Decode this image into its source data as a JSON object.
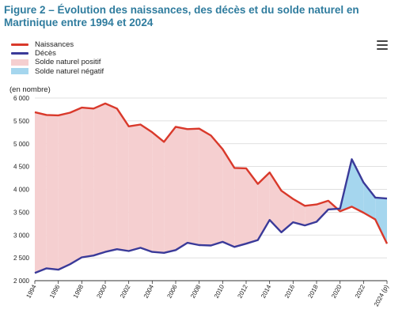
{
  "header": {
    "title": "Figure 2 – Évolution des naissances, des décès et du solde naturel en Martinique entre 1994 et 2024"
  },
  "menu": {
    "icon": "hamburger-menu-icon"
  },
  "legend": {
    "items": [
      {
        "label": "Naissances",
        "kind": "line",
        "color": "#d9392b"
      },
      {
        "label": "Décès",
        "kind": "line",
        "color": "#3a3a99"
      },
      {
        "label": "Solde naturel positif",
        "kind": "area",
        "color": "#f5cfd0"
      },
      {
        "label": "Solde naturel négatif",
        "kind": "area",
        "color": "#a5d6ee"
      }
    ]
  },
  "chart_data": {
    "type": "line",
    "title": "Figure 2 – Évolution des naissances, des décès et du solde naturel en Martinique entre 1994 et 2024",
    "ylabel": "(en nombre)",
    "xlabel": "",
    "ylim": [
      2000,
      6000
    ],
    "yticks": [
      "2 000",
      "2 500",
      "3 000",
      "3 500",
      "4 000",
      "4 500",
      "5 000",
      "5 500",
      "6 000"
    ],
    "xtick_labels": [
      "1994",
      "1996",
      "1998",
      "2000",
      "2002",
      "2004",
      "2006",
      "2008",
      "2010",
      "2012",
      "2014",
      "2016",
      "2018",
      "2020",
      "2022",
      "2024 (p)"
    ],
    "x": [
      1994,
      1995,
      1996,
      1997,
      1998,
      1999,
      2000,
      2001,
      2002,
      2003,
      2004,
      2005,
      2006,
      2007,
      2008,
      2009,
      2010,
      2011,
      2012,
      2013,
      2014,
      2015,
      2016,
      2017,
      2018,
      2019,
      2020,
      2021,
      2022,
      2023,
      2024
    ],
    "series": [
      {
        "name": "Naissances",
        "color": "#d9392b",
        "values": [
          5690,
          5630,
          5620,
          5680,
          5790,
          5770,
          5880,
          5770,
          5380,
          5420,
          5250,
          5040,
          5370,
          5320,
          5330,
          5180,
          4880,
          4470,
          4460,
          4120,
          4370,
          3970,
          3790,
          3640,
          3670,
          3750,
          3520,
          3620,
          3490,
          3340,
          2810
        ]
      },
      {
        "name": "Décès",
        "color": "#3a3a99",
        "values": [
          2170,
          2270,
          2240,
          2360,
          2510,
          2550,
          2630,
          2690,
          2650,
          2720,
          2630,
          2610,
          2670,
          2830,
          2780,
          2770,
          2850,
          2740,
          2810,
          2890,
          3330,
          3060,
          3280,
          3210,
          3290,
          3560,
          3580,
          4660,
          4150,
          3820,
          3800
        ]
      }
    ],
    "areas": [
      {
        "name": "Solde naturel positif",
        "color": "#f5cfd0"
      },
      {
        "name": "Solde naturel négatif",
        "color": "#a5d6ee"
      }
    ],
    "grid": true,
    "legend_position": "top-left"
  }
}
